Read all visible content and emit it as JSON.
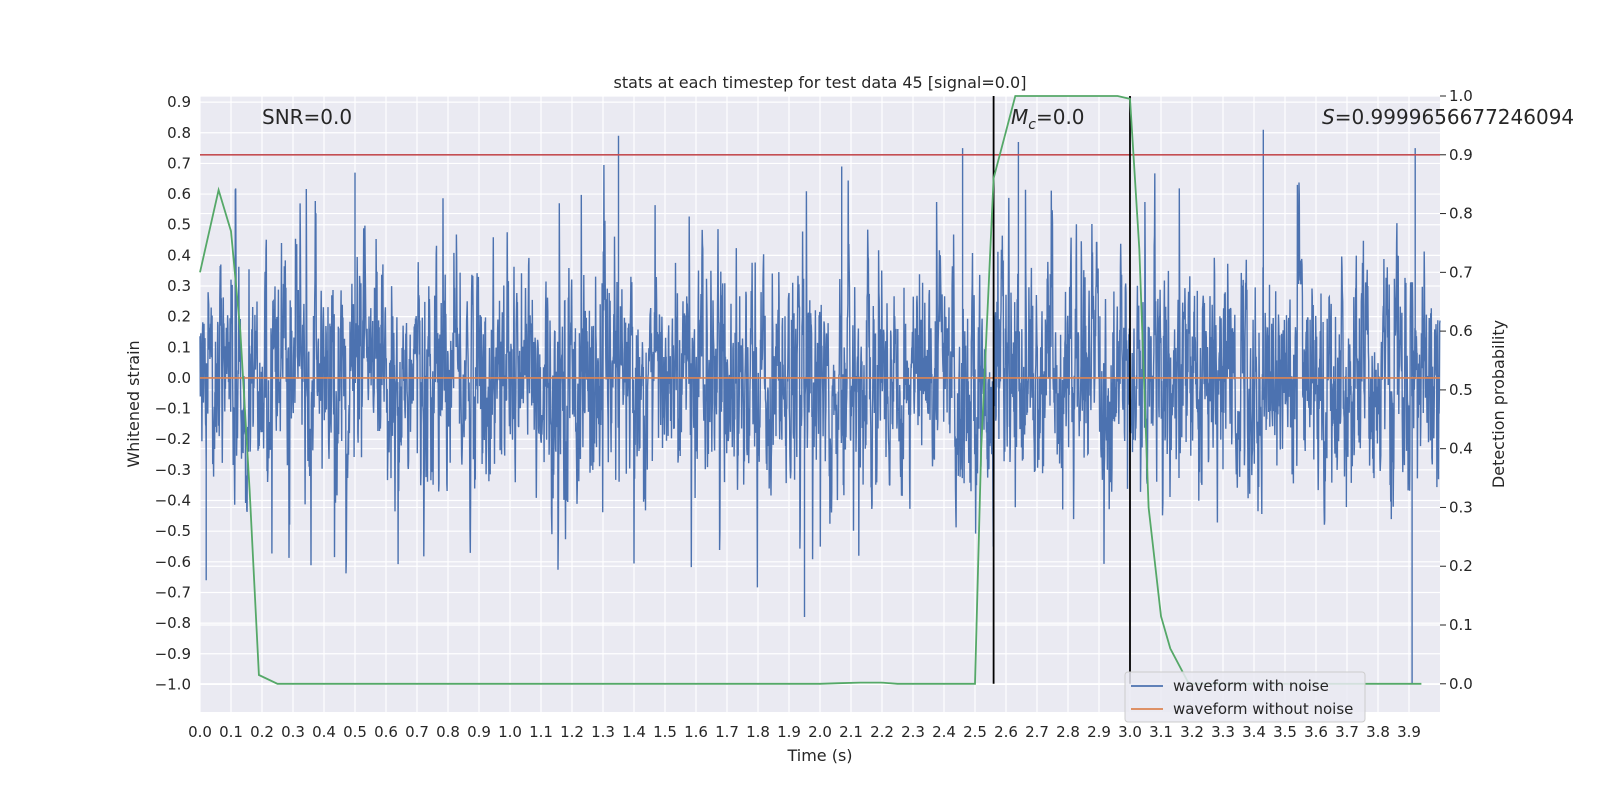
{
  "chart_data": {
    "type": "line",
    "title": "stats at each timestep for test data 45 [signal=0.0]",
    "xlabel": "Time (s)",
    "ylabel": "Whitened strain",
    "y2label": "Detection probability",
    "xlim": [
      0.0,
      4.0
    ],
    "ylim": [
      -1.09,
      0.92
    ],
    "y2lim": [
      -0.048,
      1.0
    ],
    "x_ticks": [
      0.0,
      0.1,
      0.2,
      0.3,
      0.4,
      0.5,
      0.6,
      0.7,
      0.8,
      0.9,
      1.0,
      1.1,
      1.2,
      1.3,
      1.4,
      1.5,
      1.6,
      1.7,
      1.8,
      1.9,
      2.0,
      2.1,
      2.2,
      2.3,
      2.4,
      2.5,
      2.6,
      2.7,
      2.8,
      2.9,
      3.0,
      3.1,
      3.2,
      3.3,
      3.4,
      3.5,
      3.6,
      3.7,
      3.8,
      3.9
    ],
    "x_tick_labels": [
      "0.0",
      "0.1",
      "0.2",
      "0.3",
      "0.4",
      "0.5",
      "0.6",
      "0.7",
      "0.8",
      "0.9",
      "1.0",
      "1.1",
      "1.2",
      "1.3",
      "1.4",
      "1.5",
      "1.6",
      "1.7",
      "1.8",
      "1.9",
      "2.0",
      "2.1",
      "2.2",
      "2.3",
      "2.4",
      "2.5",
      "2.6",
      "2.7",
      "2.8",
      "2.9",
      "3.0",
      "3.1",
      "3.2",
      "3.3",
      "3.4",
      "3.5",
      "3.6",
      "3.7",
      "3.8",
      "3.9"
    ],
    "y_ticks": [
      0.9,
      0.8,
      0.7,
      0.6,
      0.5,
      0.4,
      0.3,
      0.2,
      0.1,
      0.0,
      -0.1,
      -0.2,
      -0.3,
      -0.4,
      -0.5,
      -0.6,
      -0.7,
      -0.8,
      -0.9,
      -1.0
    ],
    "y_tick_labels": [
      "0.9",
      "0.8",
      "0.7",
      "0.6",
      "0.5",
      "0.4",
      "0.3",
      "0.2",
      "0.1",
      "0.0",
      "−0.1",
      "−0.2",
      "−0.3",
      "−0.4",
      "−0.5",
      "−0.6",
      "−0.7",
      "−0.8",
      "−0.9",
      "−1.0"
    ],
    "y2_ticks": [
      1.0,
      0.9,
      0.8,
      0.7,
      0.6,
      0.5,
      0.4,
      0.3,
      0.2,
      0.1,
      0.0
    ],
    "y2_tick_labels": [
      "1.0",
      "0.9",
      "0.8",
      "0.7",
      "0.6",
      "0.5",
      "0.4",
      "0.3",
      "0.2",
      "0.1",
      "0.0"
    ],
    "annotations": {
      "snr": "SNR=0.0",
      "mc_symbol": "M",
      "mc_sub": "c",
      "mc_value": "=0.0",
      "s_symbol": "S",
      "s_value": "=0.9999656677246094"
    },
    "legend": {
      "location": "lower right",
      "entries": [
        {
          "label": "waveform with noise",
          "color": "#4c72b0"
        },
        {
          "label": "waveform without noise",
          "color": "#dd8452"
        }
      ]
    },
    "threshold": {
      "axis": "y2",
      "value": 0.9,
      "color": "#c44e52"
    },
    "vlines": {
      "x": [
        2.56,
        3.0
      ],
      "y2_range": [
        0.0,
        1.0
      ],
      "color": "#000000"
    },
    "series": [
      {
        "name": "waveform with noise",
        "axis": "y",
        "color": "#4c72b0",
        "generator": {
          "dt": 0.001,
          "sigma": 0.15,
          "peak_min": 0.55,
          "seed": 45
        },
        "spikes": [
          {
            "x": 0.02,
            "y": -0.66
          },
          {
            "x": 0.5,
            "y": 0.67
          },
          {
            "x": 1.35,
            "y": 0.79
          },
          {
            "x": 1.95,
            "y": -0.78
          },
          {
            "x": 2.07,
            "y": 0.69
          },
          {
            "x": 2.46,
            "y": 0.75
          },
          {
            "x": 2.64,
            "y": 0.77
          },
          {
            "x": 3.43,
            "y": 0.81
          },
          {
            "x": 3.91,
            "y": -1.0
          },
          {
            "x": 3.92,
            "y": 0.75
          }
        ]
      },
      {
        "name": "waveform without noise",
        "axis": "y",
        "color": "#dd8452",
        "x": [
          0.0,
          4.0
        ],
        "y": [
          0.0,
          0.0
        ]
      },
      {
        "name": "detection probability",
        "axis": "y2",
        "color": "#55a868",
        "x": [
          0.0,
          0.06,
          0.1,
          0.13,
          0.16,
          0.19,
          0.25,
          0.5,
          1.0,
          1.5,
          2.0,
          2.06,
          2.13,
          2.2,
          2.25,
          2.4,
          2.47,
          2.5,
          2.52,
          2.56,
          2.6,
          2.63,
          2.66,
          2.8,
          2.96,
          3.0,
          3.03,
          3.06,
          3.1,
          3.13,
          3.19,
          3.25,
          3.5,
          3.8,
          3.94
        ],
        "y": [
          0.7,
          0.84,
          0.77,
          0.6,
          0.33,
          0.015,
          0.0,
          0.0,
          0.0,
          0.0,
          0.0,
          0.001,
          0.002,
          0.002,
          0.0,
          0.0,
          0.0,
          0.0,
          0.4,
          0.86,
          0.94,
          1.0,
          1.0,
          1.0,
          1.0,
          0.995,
          0.74,
          0.3,
          0.115,
          0.06,
          0.0,
          0.0,
          0.0,
          0.0,
          0.0
        ]
      }
    ]
  }
}
